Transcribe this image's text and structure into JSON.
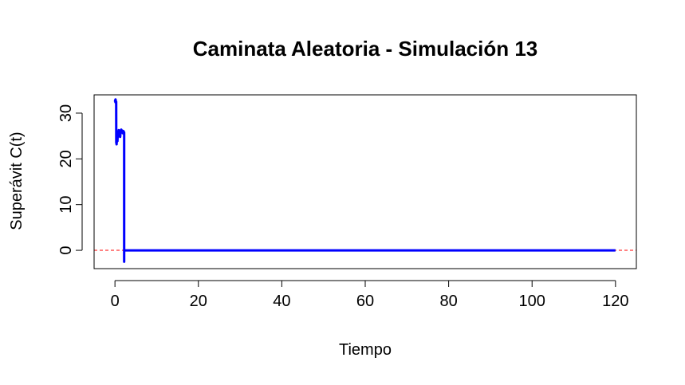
{
  "chart_data": {
    "type": "line",
    "title": "Caminata Aleatoria - Simulación 13",
    "xlabel": "Tiempo",
    "ylabel": "Superávit C(t)",
    "xlim": [
      -5,
      125
    ],
    "ylim": [
      -4,
      34
    ],
    "xticks": [
      0,
      20,
      40,
      60,
      80,
      100,
      120
    ],
    "yticks": [
      0,
      10,
      20,
      30
    ],
    "xtick_labels": [
      "0",
      "20",
      "40",
      "60",
      "80",
      "100",
      "120"
    ],
    "ytick_labels": [
      "0",
      "10",
      "20",
      "30"
    ],
    "grid": false,
    "legend": "none",
    "reference_line": {
      "y": 0,
      "style": "dashed",
      "color": "#ff0000"
    },
    "series": [
      {
        "color": "#0000ff",
        "x": [
          0,
          0.05,
          0.1,
          0.15,
          0.2,
          0.25,
          0.3,
          0.32,
          0.35,
          0.4,
          0.45,
          0.5,
          0.55,
          0.6,
          0.65,
          0.7,
          0.75,
          0.8,
          0.85,
          0.9,
          0.95,
          1.0,
          1.05,
          1.1,
          1.2,
          1.25,
          1.3,
          1.4,
          1.5,
          1.6,
          1.7,
          1.8,
          1.9,
          2.0,
          2.05,
          2.1,
          2.15,
          2.2,
          2.2,
          2.2,
          2.25,
          2.3,
          2.4,
          2.45,
          2.5,
          3,
          120
        ],
        "y": [
          32.5,
          32.8,
          32.4,
          33.0,
          32.6,
          32.2,
          32.5,
          23.5,
          24.0,
          23.2,
          24.2,
          23.8,
          24.6,
          23.9,
          25.2,
          24.8,
          25.6,
          26.0,
          25.4,
          26.3,
          25.8,
          26.2,
          25.5,
          26.0,
          25.7,
          24.8,
          25.4,
          26.0,
          26.4,
          25.8,
          26.2,
          26.0,
          25.6,
          26.1,
          25.7,
          26.0,
          25.5,
          25.8,
          -2.5,
          0,
          0,
          0,
          0,
          0,
          0,
          0,
          0
        ]
      }
    ]
  }
}
